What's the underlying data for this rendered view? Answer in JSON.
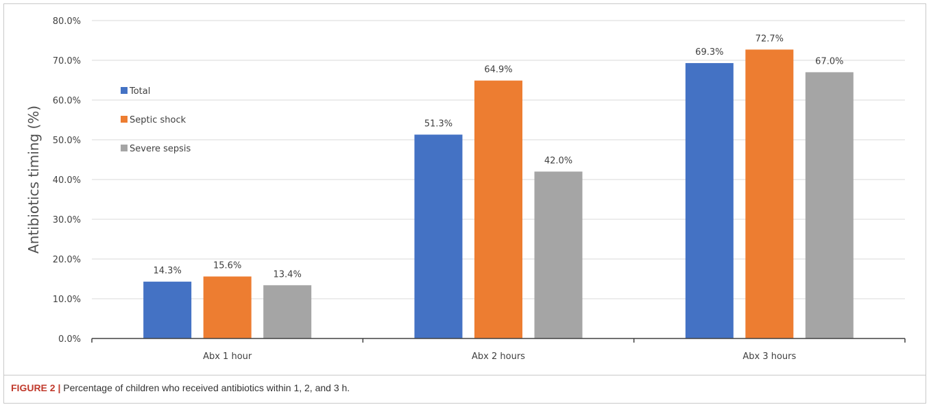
{
  "chart_data": {
    "type": "bar",
    "categories": [
      "Abx 1 hour",
      "Abx 2 hours",
      "Abx 3 hours"
    ],
    "series": [
      {
        "name": "Total",
        "color": "#4472C4",
        "values": [
          14.3,
          51.3,
          69.3
        ],
        "labels": [
          "14.3%",
          "51.3%",
          "69.3%"
        ]
      },
      {
        "name": "Septic shock",
        "color": "#ED7D31",
        "values": [
          15.6,
          64.9,
          72.7
        ],
        "labels": [
          "15.6%",
          "64.9%",
          "72.7%"
        ]
      },
      {
        "name": "Severe sepsis",
        "color": "#A5A5A5",
        "values": [
          13.4,
          42.0,
          67.0
        ],
        "labels": [
          "13.4%",
          "42.0%",
          "67.0%"
        ]
      }
    ],
    "ylabel": "Antibiotics timing (%)",
    "xlabel": "",
    "ylim": [
      0,
      80
    ],
    "yticks": [
      "0.0%",
      "10.0%",
      "20.0%",
      "30.0%",
      "40.0%",
      "50.0%",
      "60.0%",
      "70.0%",
      "80.0%"
    ],
    "ytick_values": [
      0,
      10,
      20,
      30,
      40,
      50,
      60,
      70,
      80
    ],
    "grid": true,
    "legend_position": "top-left"
  },
  "caption": {
    "label": "FIGURE 2 |",
    "text": "Percentage of children who received antibiotics within 1, 2, and 3 h."
  }
}
